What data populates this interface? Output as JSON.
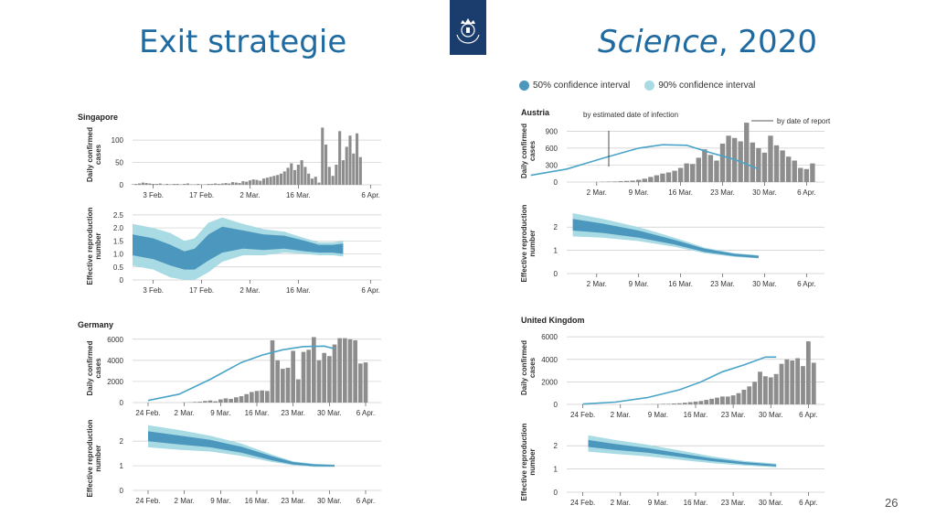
{
  "slide": {
    "title_left": "Exit strategie",
    "title_right_italic": "Science",
    "title_right_rest": ", 2020",
    "page_number": "26"
  },
  "legend": {
    "ci50": "50% confidence interval",
    "ci90": "90% confidence interval",
    "ci50_color": "#4c97bd",
    "ci90_color": "#a8dbe3"
  },
  "colors": {
    "bar": "#8d8d8d",
    "line": "#4aa4c8"
  },
  "chart_data": [
    {
      "type": "bar",
      "country": "Singapore",
      "ylabel": "Daily confirmed cases",
      "ylim": [
        0,
        135
      ],
      "yticks": [
        "0",
        "50",
        "100"
      ],
      "ytick_values": [
        0,
        50,
        100
      ],
      "xtick_labels": [
        "3 Feb.",
        "17 Feb.",
        "2 Mar.",
        "16 Mar.",
        "6 Apr."
      ],
      "xtick_days": [
        9,
        23,
        37,
        51,
        72
      ],
      "bars": [
        1,
        2,
        3,
        5,
        4,
        3,
        2,
        2,
        3,
        1,
        2,
        1,
        2,
        2,
        1,
        2,
        3,
        1,
        1,
        2,
        1,
        1,
        2,
        2,
        3,
        2,
        3,
        4,
        3,
        6,
        5,
        4,
        8,
        7,
        10,
        12,
        11,
        9,
        14,
        16,
        18,
        20,
        22,
        25,
        30,
        38,
        48,
        33,
        45,
        55,
        40,
        25,
        14,
        18,
        5,
        128,
        90,
        40,
        20,
        45,
        120,
        55,
        85,
        110,
        70,
        115,
        62
      ],
      "bar_start_day": 3,
      "line": null,
      "reproduction": {
        "ylabel": "Effective reproduction number",
        "ylim": [
          0,
          2.6
        ],
        "yticks": [
          "0",
          "0.5",
          "1.0",
          "1.5",
          "2.0",
          "2.5"
        ],
        "ytick_values": [
          0,
          0.5,
          1.0,
          1.5,
          2.0,
          2.5
        ],
        "xtick_labels": [
          "3 Feb.",
          "17 Feb.",
          "2 Mar.",
          "16 Mar.",
          "6 Apr."
        ],
        "days": [
          3,
          9,
          14,
          18,
          21,
          25,
          29,
          35,
          41,
          47,
          53,
          57,
          61,
          64
        ],
        "median": [
          1.35,
          1.2,
          0.95,
          0.75,
          0.8,
          1.25,
          1.55,
          1.55,
          1.45,
          1.45,
          1.3,
          1.2,
          1.2,
          1.2
        ],
        "ci50": [
          0.4,
          0.4,
          0.4,
          0.35,
          0.4,
          0.5,
          0.5,
          0.35,
          0.3,
          0.25,
          0.2,
          0.15,
          0.15,
          0.2
        ],
        "ci90": [
          0.8,
          0.8,
          0.85,
          0.75,
          0.8,
          0.95,
          0.85,
          0.6,
          0.5,
          0.4,
          0.3,
          0.25,
          0.25,
          0.3
        ]
      }
    },
    {
      "type": "bar",
      "country": "Austria",
      "ylabel": "Daily confirmed cases",
      "ylim": [
        0,
        1100
      ],
      "yticks": [
        "0",
        "300",
        "600",
        "900"
      ],
      "ytick_values": [
        0,
        300,
        600,
        900
      ],
      "xtick_labels": [
        "2 Mar.",
        "9 Mar.",
        "16 Mar.",
        "23 Mar.",
        "30 Mar.",
        "6 Apr."
      ],
      "xtick_days": [
        37,
        44,
        51,
        58,
        65,
        72
      ],
      "bars": [
        2,
        5,
        8,
        10,
        15,
        20,
        25,
        40,
        60,
        90,
        120,
        150,
        170,
        200,
        250,
        330,
        320,
        430,
        580,
        480,
        380,
        680,
        820,
        780,
        720,
        1050,
        700,
        600,
        520,
        820,
        650,
        560,
        450,
        380,
        250,
        230,
        330
      ],
      "bar_start_day": 37,
      "annotations": [
        "by estimated date of infection",
        "by date of report"
      ],
      "line": {
        "days": [
          26,
          32,
          38,
          44,
          48,
          52,
          56,
          60,
          64
        ],
        "values": [
          120,
          230,
          420,
          600,
          660,
          650,
          520,
          400,
          230
        ]
      },
      "reproduction": {
        "ylabel": "Effective reproduction number",
        "ylim": [
          0,
          2.6
        ],
        "yticks": [
          "0",
          "1",
          "2"
        ],
        "ytick_values": [
          0,
          1,
          2
        ],
        "xtick_labels": [
          "2 Mar.",
          "9 Mar.",
          "16 Mar.",
          "23 Mar.",
          "30 Mar.",
          "6 Apr."
        ],
        "days": [
          33,
          38,
          44,
          50,
          55,
          60,
          64
        ],
        "median": [
          2.1,
          1.95,
          1.7,
          1.35,
          1.0,
          0.8,
          0.72
        ],
        "ci50": [
          0.25,
          0.2,
          0.15,
          0.1,
          0.07,
          0.05,
          0.05
        ],
        "ci90": [
          0.5,
          0.4,
          0.3,
          0.2,
          0.12,
          0.08,
          0.07
        ]
      }
    },
    {
      "type": "bar",
      "country": "Germany",
      "ylabel": "Daily confirmed cases",
      "ylim": [
        0,
        6500
      ],
      "yticks": [
        "0",
        "2000",
        "4000",
        "6000"
      ],
      "ytick_values": [
        0,
        2000,
        4000,
        6000
      ],
      "xtick_labels": [
        "24 Feb.",
        "2 Mar.",
        "9 Mar.",
        "16 Mar.",
        "23 Mar.",
        "30 Mar.",
        "6 Apr."
      ],
      "xtick_days": [
        30,
        37,
        44,
        51,
        58,
        65,
        72
      ],
      "bars": [
        20,
        30,
        60,
        80,
        150,
        200,
        120,
        300,
        400,
        350,
        500,
        600,
        800,
        1000,
        1100,
        1150,
        1100,
        5900,
        4000,
        3200,
        3300,
        4900,
        2200,
        4800,
        5000,
        6200,
        4000,
        4700,
        4400,
        5500,
        6100,
        6100,
        6000,
        5900,
        3700,
        3800
      ],
      "bar_start_day": 37,
      "line": {
        "days": [
          30,
          36,
          42,
          48,
          52,
          56,
          60,
          64,
          66
        ],
        "values": [
          200,
          800,
          2200,
          3800,
          4500,
          5000,
          5300,
          5350,
          5100
        ]
      },
      "reproduction": {
        "ylabel": "Effective reproduction number",
        "ylim": [
          0,
          2.6
        ],
        "yticks": [
          "0",
          "1",
          "2"
        ],
        "ytick_values": [
          0,
          1,
          2
        ],
        "xtick_labels": [
          "24 Feb.",
          "2 Mar.",
          "9 Mar.",
          "16 Mar.",
          "23 Mar.",
          "30 Mar.",
          "6 Apr."
        ],
        "days": [
          30,
          36,
          42,
          48,
          54,
          58,
          62,
          66
        ],
        "median": [
          2.2,
          2.05,
          1.9,
          1.65,
          1.3,
          1.1,
          1.02,
          1.0
        ],
        "ci50": [
          0.2,
          0.18,
          0.15,
          0.12,
          0.08,
          0.05,
          0.04,
          0.03
        ],
        "ci90": [
          0.45,
          0.4,
          0.32,
          0.25,
          0.15,
          0.08,
          0.06,
          0.05
        ]
      }
    },
    {
      "type": "bar",
      "country": "United Kingdom",
      "ylabel": "Daily confirmed cases",
      "ylim": [
        0,
        6500
      ],
      "yticks": [
        "0",
        "2000",
        "4000",
        "6000"
      ],
      "ytick_values": [
        0,
        2000,
        4000,
        6000
      ],
      "xtick_labels": [
        "24 Feb.",
        "2 Mar.",
        "9 Mar.",
        "16 Mar.",
        "23 Mar.",
        "30 Mar.",
        "6 Apr."
      ],
      "xtick_days": [
        30,
        37,
        44,
        51,
        58,
        65,
        72
      ],
      "bars": [
        10,
        20,
        30,
        50,
        50,
        80,
        100,
        150,
        200,
        250,
        300,
        400,
        500,
        600,
        700,
        700,
        800,
        1000,
        1300,
        1600,
        2000,
        2900,
        2500,
        2400,
        2700,
        3600,
        4000,
        3900,
        4100,
        3400,
        5600,
        3700
      ],
      "bar_start_day": 42,
      "line": {
        "days": [
          30,
          36,
          42,
          48,
          52,
          56,
          60,
          64,
          66
        ],
        "values": [
          30,
          200,
          600,
          1300,
          2000,
          2900,
          3500,
          4200,
          4200
        ]
      },
      "reproduction": {
        "ylabel": "Effective reproduction number",
        "ylim": [
          0,
          2.6
        ],
        "yticks": [
          "0",
          "1",
          "2"
        ],
        "ytick_values": [
          0,
          1,
          2
        ],
        "xtick_labels": [
          "24 Feb.",
          "2 Mar.",
          "9 Mar.",
          "16 Mar.",
          "23 Mar.",
          "30 Mar.",
          "6 Apr."
        ],
        "days": [
          31,
          36,
          42,
          48,
          54,
          60,
          66
        ],
        "median": [
          2.1,
          1.95,
          1.8,
          1.6,
          1.4,
          1.25,
          1.15
        ],
        "ci50": [
          0.15,
          0.13,
          0.1,
          0.08,
          0.06,
          0.05,
          0.04
        ],
        "ci90": [
          0.35,
          0.3,
          0.25,
          0.2,
          0.15,
          0.1,
          0.08
        ]
      }
    }
  ]
}
